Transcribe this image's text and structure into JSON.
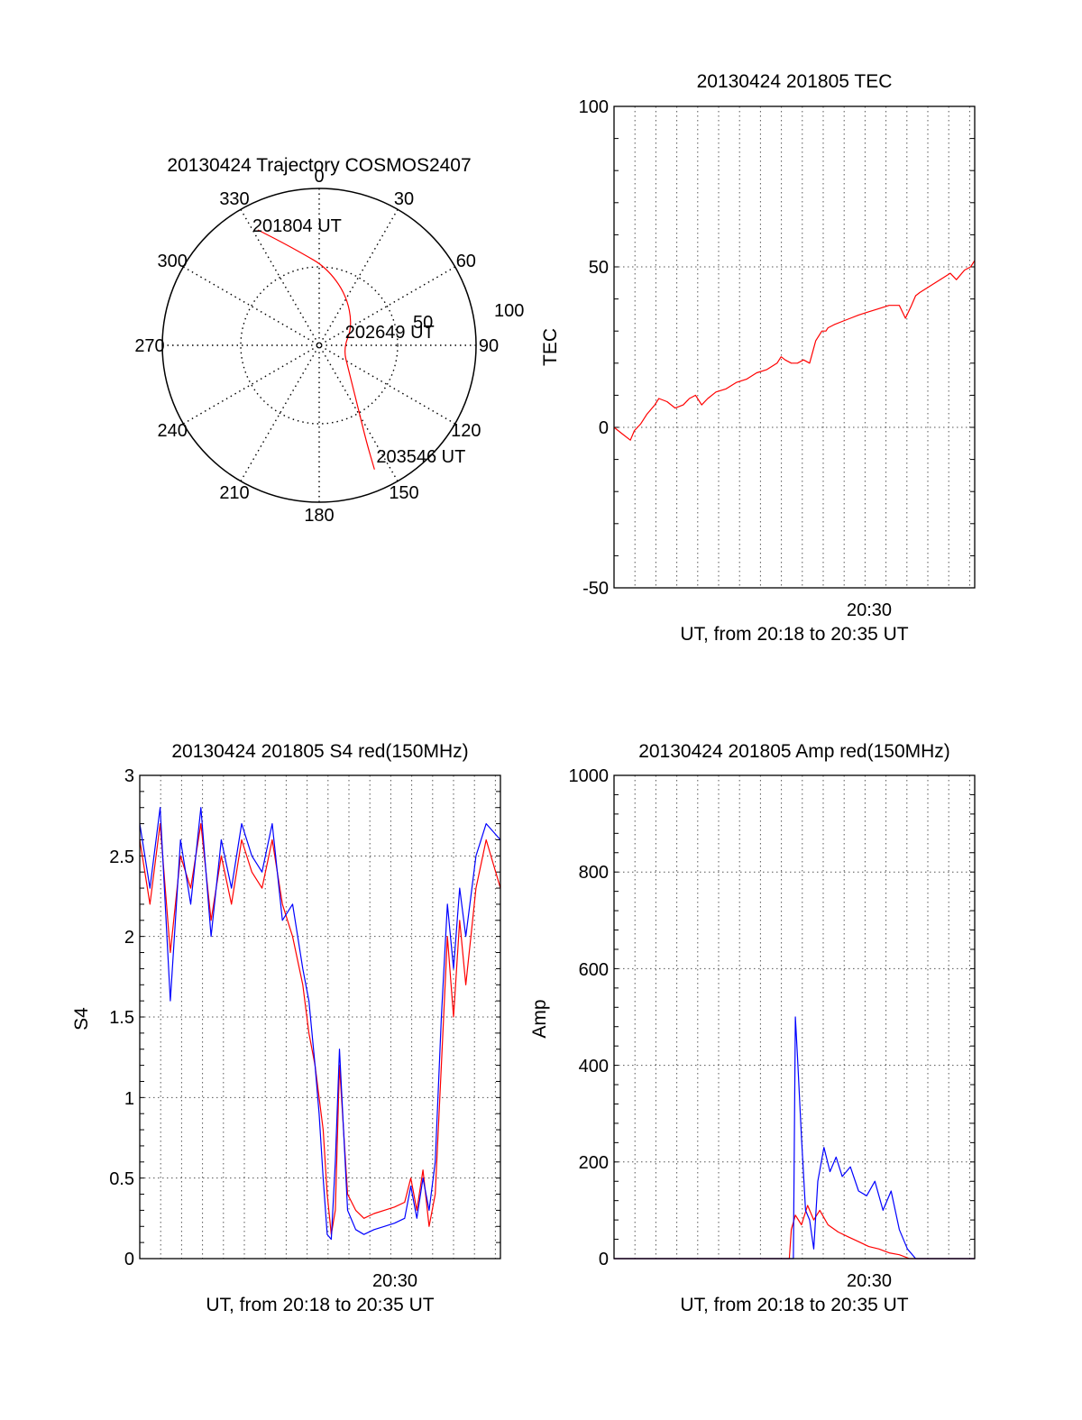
{
  "colors": {
    "red": "#ff0000",
    "blue": "#0000ff",
    "axis": "#000000"
  },
  "chart_data": [
    {
      "id": "trajectory",
      "type": "polar",
      "title": "20130424 Trajectory COSMOS2407",
      "angle_ticks": [
        "0",
        "30",
        "60",
        "90",
        "120",
        "150",
        "180",
        "210",
        "240",
        "270",
        "300",
        "330"
      ],
      "radial_ticks": [
        "50",
        "100"
      ],
      "radial_range": [
        0,
        90
      ],
      "grid": true,
      "series": [
        {
          "color": "#ff0000",
          "points": [
            {
              "az": 332,
              "r": 75
            },
            {
              "az": 340,
              "r": 63
            },
            {
              "az": 349,
              "r": 54
            },
            {
              "az": 5,
              "r": 45
            },
            {
              "az": 28,
              "r": 33
            },
            {
              "az": 60,
              "r": 22
            },
            {
              "az": 98,
              "r": 14
            },
            {
              "az": 130,
              "r": 22
            },
            {
              "az": 148,
              "r": 42
            },
            {
              "az": 154,
              "r": 62
            },
            {
              "az": 156,
              "r": 78
            }
          ]
        }
      ],
      "annotations": [
        {
          "text": "201804 UT",
          "az": 332,
          "r": 75
        },
        {
          "text": "202649 UT",
          "az": 98,
          "r": 14
        },
        {
          "text": "203546 UT",
          "az": 156,
          "r": 78
        }
      ]
    },
    {
      "id": "tec",
      "type": "line",
      "title": "20130424 201805 TEC",
      "ylabel": "TEC",
      "xlabel": "UT, from 20:18 to 20:35 UT",
      "x_tick_label": "20:30",
      "y_ticks": [
        "100",
        "50",
        "0",
        "-50"
      ],
      "ylim": [
        -50,
        100
      ],
      "x_range_min": [
        0,
        17.7
      ],
      "grid": true,
      "series": [
        {
          "color": "#ff0000",
          "x": [
            0,
            0.4,
            0.8,
            1.0,
            1.3,
            1.6,
            2.0,
            2.2,
            2.6,
            3.0,
            3.4,
            3.7,
            4.0,
            4.3,
            4.6,
            5.0,
            5.5,
            6.0,
            6.5,
            7.0,
            7.5,
            8.0,
            8.2,
            8.4,
            8.7,
            9.0,
            9.3,
            9.6,
            9.9,
            10.2,
            10.4,
            10.5,
            10.8,
            11.2,
            11.6,
            12.0,
            12.5,
            13.0,
            13.5,
            14.0,
            14.3,
            14.6,
            14.8,
            15.0,
            15.5,
            16.0,
            16.5,
            16.8,
            17.2,
            17.5,
            17.7
          ],
          "y": [
            0,
            -2,
            -4,
            -1,
            1,
            4,
            7,
            9,
            8,
            6,
            7,
            9,
            10,
            7,
            9,
            11,
            12,
            14,
            15,
            17,
            18,
            20,
            22,
            21,
            20,
            20,
            21,
            20,
            27,
            30,
            30,
            31,
            32,
            33,
            34,
            35,
            36,
            37,
            38,
            38,
            34,
            38,
            41,
            42,
            44,
            46,
            48,
            46,
            49,
            50,
            52
          ]
        }
      ]
    },
    {
      "id": "s4",
      "type": "line",
      "title": "20130424 201805 S4 red(150MHz)",
      "ylabel": "S4",
      "xlabel": "UT, from 20:18 to 20:35 UT",
      "x_tick_label": "20:30",
      "y_ticks": [
        "3",
        "2.5",
        "2",
        "1.5",
        "1",
        "0.5",
        "0"
      ],
      "ylim": [
        0,
        3
      ],
      "x_range_min": [
        0,
        17.7
      ],
      "grid": true,
      "series": [
        {
          "color": "#ff0000",
          "x": [
            0.0,
            0.5,
            1.0,
            1.5,
            2.0,
            2.5,
            3.0,
            3.5,
            4.0,
            4.5,
            5.0,
            5.5,
            6.0,
            6.5,
            7.0,
            7.5,
            8.0,
            8.3,
            8.6,
            8.8,
            9.0,
            9.2,
            9.4,
            9.6,
            9.8,
            10.2,
            10.6,
            11.0,
            11.5,
            12.0,
            12.5,
            13.0,
            13.3,
            13.6,
            13.9,
            14.2,
            14.5,
            14.8,
            15.1,
            15.4,
            15.7,
            16.0,
            16.5,
            17.0,
            17.7
          ],
          "y": [
            2.6,
            2.2,
            2.7,
            1.9,
            2.5,
            2.3,
            2.7,
            2.1,
            2.5,
            2.2,
            2.6,
            2.4,
            2.3,
            2.6,
            2.2,
            2.0,
            1.7,
            1.4,
            1.2,
            1.0,
            0.8,
            0.4,
            0.15,
            0.3,
            1.2,
            0.4,
            0.3,
            0.25,
            0.28,
            0.3,
            0.32,
            0.35,
            0.5,
            0.3,
            0.55,
            0.2,
            0.4,
            1.2,
            2.0,
            1.5,
            2.1,
            1.7,
            2.3,
            2.6,
            2.3
          ]
        },
        {
          "color": "#0000ff",
          "x": [
            0.0,
            0.5,
            1.0,
            1.5,
            2.0,
            2.5,
            3.0,
            3.5,
            4.0,
            4.5,
            5.0,
            5.5,
            6.0,
            6.5,
            7.0,
            7.5,
            8.0,
            8.3,
            8.6,
            8.8,
            9.0,
            9.2,
            9.4,
            9.6,
            9.8,
            10.2,
            10.6,
            11.0,
            11.5,
            12.0,
            12.5,
            13.0,
            13.3,
            13.6,
            13.9,
            14.2,
            14.5,
            14.8,
            15.1,
            15.4,
            15.7,
            16.0,
            16.5,
            17.0,
            17.7
          ],
          "y": [
            2.7,
            2.3,
            2.8,
            1.6,
            2.6,
            2.2,
            2.8,
            2.0,
            2.6,
            2.3,
            2.7,
            2.5,
            2.4,
            2.7,
            2.1,
            2.2,
            1.8,
            1.6,
            1.2,
            0.9,
            0.5,
            0.15,
            0.12,
            0.6,
            1.3,
            0.3,
            0.18,
            0.15,
            0.18,
            0.2,
            0.22,
            0.25,
            0.45,
            0.25,
            0.5,
            0.3,
            0.6,
            1.5,
            2.2,
            1.8,
            2.3,
            2.0,
            2.5,
            2.7,
            2.6
          ]
        }
      ]
    },
    {
      "id": "amp",
      "type": "line",
      "title": "20130424 201805 Amp red(150MHz)",
      "ylabel": "Amp",
      "xlabel": "UT, from 20:18 to 20:35 UT",
      "x_tick_label": "20:30",
      "y_ticks": [
        "1000",
        "800",
        "600",
        "400",
        "200",
        "0"
      ],
      "ylim": [
        0,
        1000
      ],
      "x_range_min": [
        0,
        17.7
      ],
      "grid": true,
      "series": [
        {
          "color": "#ff0000",
          "x": [
            0,
            8.6,
            8.7,
            8.9,
            9.2,
            9.5,
            9.8,
            10.1,
            10.5,
            11.0,
            11.5,
            12.0,
            12.5,
            13.0,
            13.5,
            14.0,
            14.5,
            17.7
          ],
          "y": [
            0,
            0,
            60,
            90,
            70,
            110,
            80,
            100,
            70,
            55,
            45,
            35,
            25,
            20,
            12,
            8,
            0,
            0
          ]
        },
        {
          "color": "#0000ff",
          "x": [
            0,
            8.8,
            8.9,
            9.0,
            9.2,
            9.4,
            9.6,
            9.8,
            10.0,
            10.3,
            10.6,
            10.9,
            11.2,
            11.6,
            12.0,
            12.4,
            12.8,
            13.2,
            13.6,
            14.0,
            14.4,
            14.8,
            17.7
          ],
          "y": [
            0,
            0,
            500,
            420,
            250,
            100,
            80,
            20,
            160,
            230,
            180,
            210,
            170,
            190,
            140,
            130,
            160,
            100,
            140,
            60,
            20,
            0,
            0
          ]
        }
      ]
    }
  ]
}
